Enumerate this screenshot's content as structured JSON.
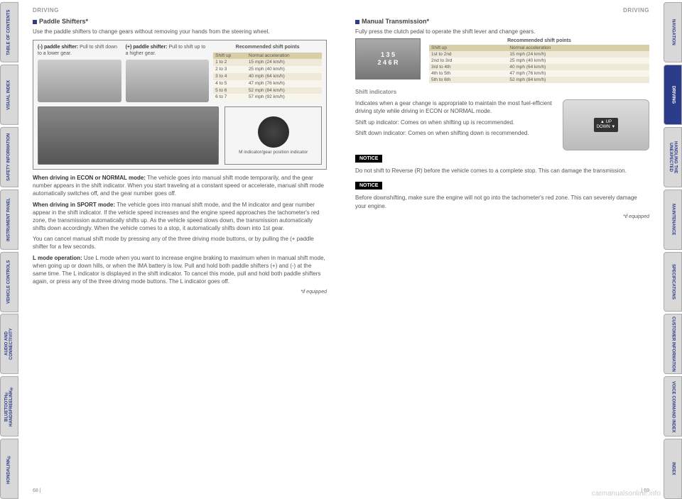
{
  "tabs_left": [
    "TABLE OF CONTENTS",
    "VISUAL INDEX",
    "SAFETY INFORMATION",
    "INSTRUMENT PANEL",
    "VEHICLE CONTROLS",
    "AUDIO AND CONNECTIVITY",
    "BLUETOOTH® HANDSFREELINK®",
    "HONDALINK®"
  ],
  "tabs_right": [
    "NAVIGATION",
    "DRIVING",
    "HANDLING THE UNEXPECTED",
    "MAINTENANCE",
    "SPECIFICATIONS",
    "CUSTOMER INFORMATION",
    "VOICE COMMAND INDEX",
    "INDEX"
  ],
  "active_right_tab": 1,
  "header": "DRIVING",
  "left": {
    "title": "Paddle Shifters*",
    "intro": "Use the paddle shifters to change gears without removing your hands from the steering wheel.",
    "minus_label": "(-) paddle shifter:",
    "minus_desc": "Pull to shift down to a lower gear.",
    "plus_label": "(+) paddle shifter:",
    "plus_desc": "Pull to shift up to a higher gear.",
    "shift_title": "Recommended shift points",
    "shift_head": [
      "Shift up",
      "Normal acceleration"
    ],
    "shift_rows": [
      [
        "1 to 2",
        "15 mph (24 km/h)"
      ],
      [
        "2 to 3",
        "25 mph (40 km/h)"
      ],
      [
        "3 to 4",
        "40 mph (64 km/h)"
      ],
      [
        "4 to 5",
        "47 mph (76 km/h)"
      ],
      [
        "5 to 6",
        "52 mph (84 km/h)"
      ],
      [
        "6 to 7",
        "57 mph (92 km/h)"
      ]
    ],
    "gauge_label": "M indicator/gear position indicator",
    "para1_lead": "When driving in ECON or NORMAL mode:",
    "para1": " The vehicle goes into manual shift mode temporarily, and the gear number appears in the shift indicator. When you start traveling at a constant speed or accelerate, manual shift mode automatically switches off, and the gear number goes off.",
    "para2_lead": "When driving in SPORT mode:",
    "para2": " The vehicle goes into manual shift mode, and the M indicator and gear number appear in the shift indicator. If the vehicle speed increases and the engine speed approaches the tachometer's red zone, the transmission automatically shifts up. As the vehicle speed slows down, the transmission automatically shifts down accordingly. When the vehicle comes to a stop, it automatically shifts down into 1st gear.",
    "para3": "You can cancel manual shift mode by pressing any of the three driving mode buttons, or by pulling the (+ paddle shifter for a few seconds.",
    "para4_lead": "L mode operation:",
    "para4": " Use L mode when you want to increase engine braking to maximum when in manual shift mode, when going up or down hills, or when the IMA battery is low. Pull and hold both paddle shifters (+) and (-) at the same time. The L indicator is displayed in the shift indicator. To cancel this mode, pull and hold both paddle shifters again, or press any of the three driving mode buttons. The L indicator goes off.",
    "footnote": "*if equipped",
    "page_num": "68  |"
  },
  "right": {
    "title": "Manual Transmission*",
    "intro": "Fully press the clutch pedal to operate the shift lever and change gears.",
    "shift_pattern": "1 3 5\n2 4 6 R",
    "shift_title": "Recommended shift points",
    "shift_head": [
      "Shift up",
      "Normal acceleration"
    ],
    "shift_rows": [
      [
        "1st to 2nd",
        "15 mph (24 km/h)"
      ],
      [
        "2nd to 3rd",
        "25 mph (40 km/h)"
      ],
      [
        "3rd to 4th",
        "40 mph (64 km/h)"
      ],
      [
        "4th to 5th",
        "47 mph (76 km/h)"
      ],
      [
        "5th to 6th",
        "52 mph (84 km/h)"
      ]
    ],
    "sub": "Shift indicators",
    "sub_p1": "Indicates when a gear change is appropriate to maintain the most fuel-efficient driving style while driving in ECON or NORMAL mode.",
    "sub_p2": "Shift up indicator: Comes on when shifting up is recommended.",
    "sub_p3": "Shift down indicator: Comes on when shifting down is recommended.",
    "updown": "▲ UP\nDOWN ▼",
    "notice": "NOTICE",
    "n1": "Do not shift to Reverse (R) before the vehicle comes to a complete stop. This can damage the transmission.",
    "n2": "Before downshifting, make sure the engine will not go into the tachometer's red zone. This can severely damage your engine.",
    "footnote": "*if equipped",
    "page_num": "|  69"
  },
  "watermark": "carmanualsonline.info"
}
